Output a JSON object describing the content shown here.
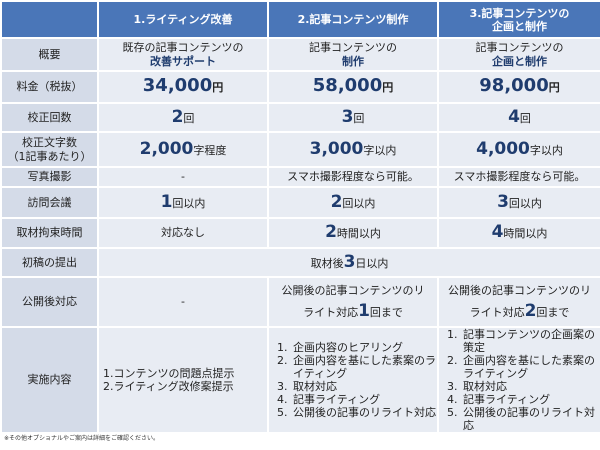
{
  "headers": [
    "",
    "1.ライティング改善",
    "2.記事コンテンツ制作",
    "3.記事コンテンツの",
    "企画と制作"
  ],
  "rows": {
    "overview": {
      "label": "概要",
      "c1a": "既存の記事コンテンツの",
      "c1b": "改善サポート",
      "c2a": "記事コンテンツの",
      "c2b": "制作",
      "c3a": "記事コンテンツの",
      "c3b": "企画と制作"
    },
    "price": {
      "label": "料金（税抜）",
      "c1": "34,000",
      "c2": "58,000",
      "c3": "98,000",
      "unit": "円"
    },
    "proof_count": {
      "label": "校正回数",
      "c1": "2",
      "c2": "3",
      "c3": "4",
      "unit": "回"
    },
    "proof_chars": {
      "label_a": "校正文字数",
      "label_b": "（1記事あたり）",
      "c1": "2,000",
      "c1_unit": "字程度",
      "c2": "3,000",
      "c2_unit": "字以内",
      "c3": "4,000",
      "c3_unit": "字以内"
    },
    "photo": {
      "label": "写真撮影",
      "c1": "-",
      "c2": "スマホ撮影程度なら可能。",
      "c3": "スマホ撮影程度なら可能。"
    },
    "visit": {
      "label": "訪問会議",
      "c1": "1",
      "c2": "2",
      "c3": "3",
      "unit": "回以内"
    },
    "interview": {
      "label": "取材拘束時間",
      "c1": "対応なし",
      "c2": "2",
      "c3": "4",
      "unit": "時間以内"
    },
    "first_draft": {
      "label": "初稿の提出",
      "pre": "取材後",
      "num": "3",
      "post": "日以内"
    },
    "after": {
      "label": "公開後対応",
      "c1": "-",
      "c2a": "公開後の記事コンテンツのリ",
      "c2b": "ライト対応",
      "c2num": "1",
      "c2c": "回まで",
      "c3a": "公開後の記事コンテンツのリ",
      "c3b": "ライト対応",
      "c3num": "2",
      "c3c": "回まで"
    },
    "content": {
      "label": "実施内容",
      "c1": [
        "1.コンテンツの問題点提示",
        "2.ライティング改修案提示"
      ],
      "c2": [
        "企画内容のヒアリング",
        "企画内容を基にした素案のライティング",
        "取材対応",
        "記事ライティング",
        "公開後の記事のリライト対応"
      ],
      "c3": [
        "記事コンテンツの企画案の策定",
        "企画内容を基にした素案のライティング",
        "取材対応",
        "記事ライティング",
        "公開後の記事のリライト対応"
      ]
    }
  },
  "note": "※その他オプショナルやご案内は詳細をご確認ください。"
}
